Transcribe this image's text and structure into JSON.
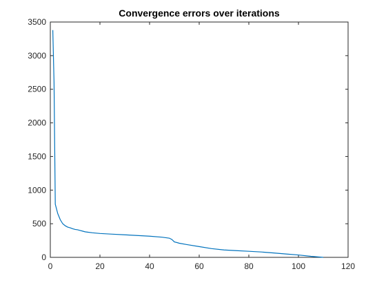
{
  "chart_data": {
    "type": "line",
    "title": "Convergence errors over iterations",
    "xlabel": "",
    "ylabel": "",
    "xlim": [
      0,
      120
    ],
    "ylim": [
      0,
      3500
    ],
    "xticks": [
      0,
      20,
      40,
      60,
      80,
      100,
      120
    ],
    "yticks": [
      0,
      500,
      1000,
      1500,
      2000,
      2500,
      3000,
      3500
    ],
    "grid": false,
    "legend": "none",
    "series": [
      {
        "color": "#0072BD",
        "x": [
          1,
          1.5,
          2,
          3,
          4,
          5,
          6,
          7,
          8,
          9,
          10,
          11,
          12,
          13,
          14,
          15,
          17,
          20,
          25,
          30,
          35,
          40,
          45,
          48,
          49,
          50,
          52,
          55,
          60,
          65,
          70,
          75,
          80,
          85,
          90,
          95,
          100,
          105,
          110
        ],
        "y": [
          3380,
          2600,
          790,
          650,
          560,
          500,
          470,
          450,
          440,
          425,
          415,
          410,
          400,
          390,
          380,
          375,
          365,
          355,
          345,
          335,
          325,
          315,
          300,
          285,
          265,
          230,
          210,
          190,
          160,
          130,
          110,
          100,
          90,
          80,
          65,
          50,
          35,
          15,
          0
        ]
      }
    ]
  }
}
